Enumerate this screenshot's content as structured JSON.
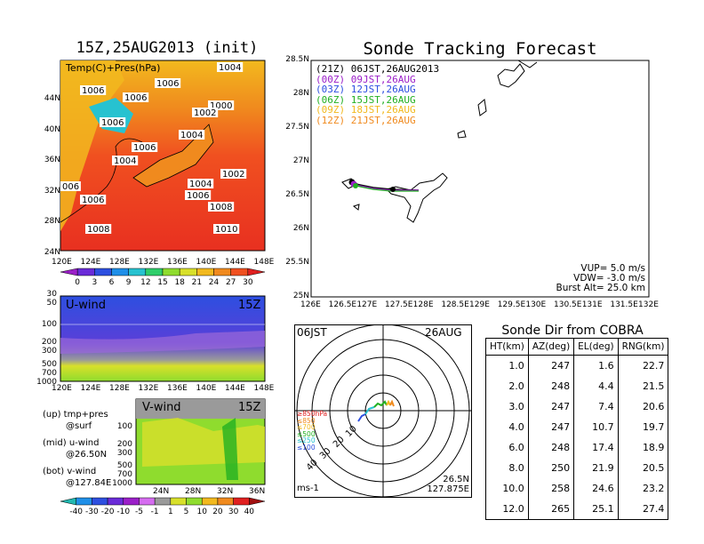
{
  "left": {
    "title": "15Z,25AUG2013 (init)",
    "map_label": "Temp(C)+Pres(hPa)",
    "lat_labels": [
      "44N",
      "40N",
      "36N",
      "32N",
      "28N",
      "24N"
    ],
    "lon_labels": [
      "120E",
      "124E",
      "128E",
      "132E",
      "136E",
      "140E",
      "144E",
      "148E"
    ],
    "isobars": [
      "1004",
      "1006",
      "1006",
      "1006",
      "1006",
      "1000",
      "1002",
      "1004",
      "1006",
      "1004",
      "1002",
      "1004",
      "006",
      "1006",
      "1006",
      "1008",
      "1008",
      "1010"
    ],
    "colorbar_labels": [
      "0",
      "3",
      "6",
      "9",
      "12",
      "15",
      "18",
      "21",
      "24",
      "27",
      "30"
    ],
    "colorbar_colors": [
      "#9b1fc8",
      "#6a2bd8",
      "#2d4fe0",
      "#1f8fe8",
      "#27c2d0",
      "#2fce6a",
      "#8fdc2e",
      "#d8e02a",
      "#f2b91e",
      "#f08a1e",
      "#f05020",
      "#e02020"
    ],
    "uwind": {
      "label": "U-wind",
      "time": "15Z",
      "levels": [
        "30",
        "50",
        "100",
        "200",
        "300",
        "500",
        "700",
        "1000"
      ],
      "lon_labels": [
        "120E",
        "124E",
        "128E",
        "132E",
        "136E",
        "140E",
        "144E",
        "148E"
      ]
    },
    "vwind": {
      "label": "V-wind",
      "time": "15Z",
      "levels": [
        "100",
        "200",
        "300",
        "500",
        "700",
        "1000"
      ],
      "lat_labels": [
        "24N",
        "28N",
        "32N",
        "36N"
      ]
    },
    "notes": [
      {
        "line1": "(up) tmp+pres",
        "line2": "@surf"
      },
      {
        "line1": "(mid) u-wind",
        "line2": "@26.50N"
      },
      {
        "line1": "(bot) v-wind",
        "line2": "@127.84E"
      }
    ],
    "wind_colorbar_labels": [
      "-40",
      "-30",
      "-20",
      "-10",
      "-5",
      "-1",
      "1",
      "5",
      "10",
      "20",
      "30",
      "40"
    ],
    "wind_colorbar_colors": [
      "#22b8b0",
      "#1f8fe8",
      "#2d4fe0",
      "#6a2bd8",
      "#9b1fc8",
      "#d56cf0",
      "#9a9a9a",
      "#d8e02a",
      "#8fdc2e",
      "#f2b91e",
      "#f08a1e",
      "#e02020",
      "#a01010"
    ]
  },
  "track": {
    "title": "Sonde Tracking Forecast",
    "lat_labels": [
      "28.5N",
      "28N",
      "27.5N",
      "27N",
      "26.5N",
      "26N",
      "25.5N",
      "25N"
    ],
    "lon_labels": [
      "126E",
      "126.5E",
      "127E",
      "127.5E",
      "128E",
      "128.5E",
      "129E",
      "129.5E",
      "130E",
      "130.5E",
      "131E",
      "131.5E",
      "132E"
    ],
    "legend": [
      {
        "code": "(21Z)",
        "time": "06JST,26AUG2013",
        "color": "#000000"
      },
      {
        "code": "(00Z)",
        "time": "09JST,26AUG",
        "color": "#9b1fc8"
      },
      {
        "code": "(03Z)",
        "time": "12JST,26AUG",
        "color": "#2d4fe0"
      },
      {
        "code": "(06Z)",
        "time": "15JST,26AUG",
        "color": "#22b022"
      },
      {
        "code": "(09Z)",
        "time": "18JST,26AUG",
        "color": "#f2b91e"
      },
      {
        "code": "(12Z)",
        "time": "21JST,26AUG",
        "color": "#f08a1e"
      }
    ],
    "vup": "VUP= 5.0 m/s",
    "vdw": "VDW= -3.0 m/s",
    "burst": "Burst Alt= 25.0 km"
  },
  "polar": {
    "time": "06JST",
    "date": "26AUG",
    "ring_labels": [
      "10",
      "20",
      "30",
      "40"
    ],
    "unit": "ms-1",
    "lat": "26.5N",
    "lon": "127.875E",
    "levels": [
      {
        "label": "≥850hPa",
        "color": "#e02020"
      },
      {
        "label": "≤850",
        "color": "#f08a1e"
      },
      {
        "label": "≤700",
        "color": "#f2b91e"
      },
      {
        "label": "≤500",
        "color": "#22b022"
      },
      {
        "label": "≤250",
        "color": "#27c2d0"
      },
      {
        "label": "≤100",
        "color": "#2d4fe0"
      }
    ]
  },
  "table": {
    "title": "Sonde Dir from COBRA",
    "headers": [
      "HT(km)",
      "AZ(deg)",
      "EL(deg)",
      "RNG(km)"
    ],
    "rows": [
      [
        "1.0",
        "247",
        "1.6",
        "22.7"
      ],
      [
        "2.0",
        "248",
        "4.4",
        "21.5"
      ],
      [
        "3.0",
        "247",
        "7.4",
        "20.6"
      ],
      [
        "4.0",
        "247",
        "10.7",
        "19.7"
      ],
      [
        "6.0",
        "248",
        "17.4",
        "18.9"
      ],
      [
        "8.0",
        "250",
        "21.9",
        "20.5"
      ],
      [
        "10.0",
        "258",
        "24.6",
        "23.2"
      ],
      [
        "12.0",
        "265",
        "25.1",
        "27.4"
      ]
    ]
  },
  "chart_data": [
    {
      "type": "heatmap",
      "title": "15Z,25AUG2013 (init)",
      "subtitle": "Temp(C)+Pres(hPa)",
      "xlabel": "",
      "ylabel": "",
      "xlim": [
        120,
        148
      ],
      "ylim": [
        22,
        47
      ],
      "colorbar": [
        0,
        3,
        6,
        9,
        12,
        15,
        18,
        21,
        24,
        27,
        30
      ]
    },
    {
      "type": "heatmap",
      "title": "U-wind 15Z",
      "ylim": [
        1000,
        30
      ],
      "xlim": [
        120,
        148
      ]
    },
    {
      "type": "heatmap",
      "title": "V-wind 15Z",
      "ylim": [
        1000,
        100
      ],
      "xlim": [
        22,
        38
      ]
    },
    {
      "type": "line",
      "title": "Sonde Tracking Forecast",
      "xlim": [
        126,
        132
      ],
      "ylim": [
        25,
        28.5
      ],
      "series": [
        {
          "name": "(21Z) 06JST,26AUG2013",
          "x": [
            127.84,
            127.5,
            127.2,
            127.0,
            126.85,
            126.75
          ],
          "y": [
            26.58,
            26.6,
            26.62,
            26.64,
            26.67,
            26.68
          ]
        }
      ]
    },
    {
      "type": "table",
      "title": "Sonde Dir from COBRA",
      "headers": [
        "HT(km)",
        "AZ(deg)",
        "EL(deg)",
        "RNG(km)"
      ],
      "rows": [
        [
          "1.0",
          "247",
          "1.6",
          "22.7"
        ],
        [
          "2.0",
          "248",
          "4.4",
          "21.5"
        ],
        [
          "3.0",
          "247",
          "7.4",
          "20.6"
        ],
        [
          "4.0",
          "247",
          "10.7",
          "19.7"
        ],
        [
          "6.0",
          "248",
          "17.4",
          "18.9"
        ],
        [
          "8.0",
          "250",
          "21.9",
          "20.5"
        ],
        [
          "10.0",
          "258",
          "24.6",
          "23.2"
        ],
        [
          "12.0",
          "265",
          "25.1",
          "27.4"
        ]
      ]
    }
  ]
}
